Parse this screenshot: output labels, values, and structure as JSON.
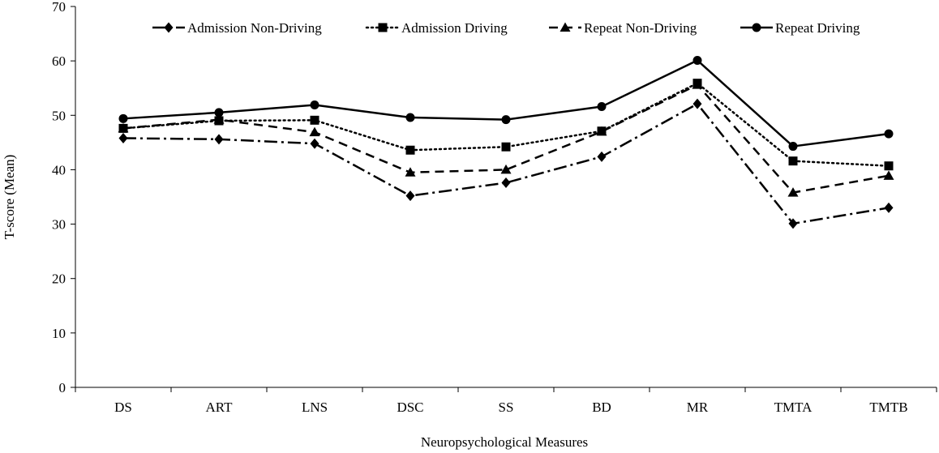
{
  "chart_data": {
    "type": "line",
    "title": "",
    "xlabel": "Neuropsychological Measures",
    "ylabel": "T-score (Mean)",
    "ylim": [
      0,
      70
    ],
    "yticks": [
      0,
      10,
      20,
      30,
      40,
      50,
      60,
      70
    ],
    "grid": false,
    "legend_position": "top",
    "categories": [
      "DS",
      "ART",
      "LNS",
      "DSC",
      "SS",
      "BD",
      "MR",
      "TMTA",
      "TMTB"
    ],
    "series": [
      {
        "name": "Admission Non-Driving",
        "marker": "diamond",
        "dash": "dash-dot",
        "color": "#000000",
        "values": [
          45.8,
          45.6,
          44.8,
          35.2,
          37.6,
          42.4,
          52.1,
          30.1,
          33.0
        ]
      },
      {
        "name": "Admission Driving",
        "marker": "square",
        "dash": "dotted",
        "color": "#000000",
        "values": [
          47.6,
          49.0,
          49.1,
          43.6,
          44.2,
          47.1,
          55.9,
          41.6,
          40.7
        ]
      },
      {
        "name": "Repeat Non-Driving",
        "marker": "triangle",
        "dash": "dashed",
        "color": "#000000",
        "values": [
          47.6,
          49.2,
          46.9,
          39.5,
          40.0,
          47.0,
          55.6,
          35.8,
          38.9
        ]
      },
      {
        "name": "Repeat Driving",
        "marker": "circle",
        "dash": "solid",
        "color": "#000000",
        "values": [
          49.4,
          50.5,
          51.9,
          49.6,
          49.2,
          51.6,
          60.1,
          44.3,
          46.6
        ]
      }
    ]
  }
}
